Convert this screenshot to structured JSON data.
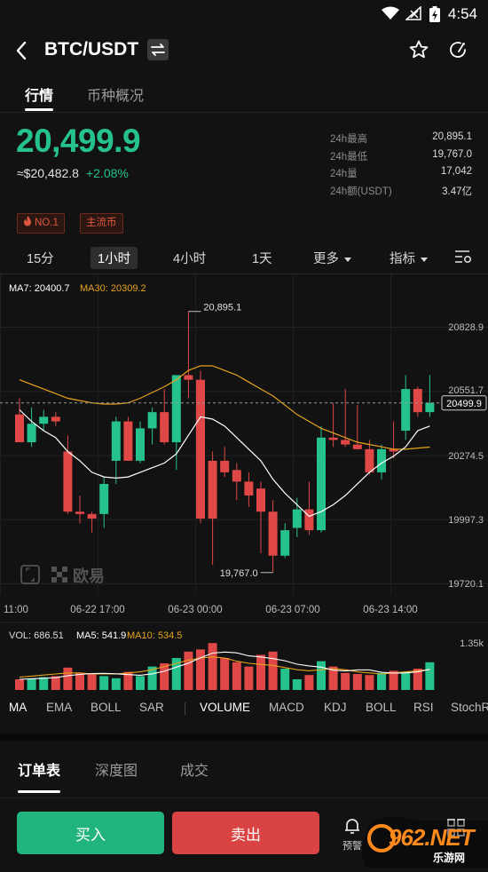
{
  "status_bar": {
    "time": "4:54"
  },
  "header": {
    "pair": "BTC/USDT"
  },
  "tabs": [
    {
      "label": "行情"
    },
    {
      "label": "币种概况"
    }
  ],
  "price": {
    "last": "20,499.9",
    "usd": "≈$20,482.8",
    "change": "+2.08%"
  },
  "stats": [
    {
      "label": "24h最高",
      "value": "20,895.1"
    },
    {
      "label": "24h最低",
      "value": "19,767.0"
    },
    {
      "label": "24h量",
      "value": "17,042"
    },
    {
      "label": "24h额(USDT)",
      "value": "3.47亿"
    }
  ],
  "tags": [
    "NO.1",
    "主流币"
  ],
  "timeframes": [
    {
      "label": "15分"
    },
    {
      "label": "1小时",
      "selected": true
    },
    {
      "label": "4小时"
    },
    {
      "label": "1天"
    },
    {
      "label": "更多"
    },
    {
      "label": "指标"
    }
  ],
  "ma_legend": {
    "ma7": "MA7: 20400.7",
    "ma30": "MA30: 20309.2"
  },
  "price_axis": [
    "20828.9",
    "20551.7",
    "20274.5",
    "19997.3",
    "19720.1"
  ],
  "current_price_label": "20499.9",
  "high_marker": "20,895.1",
  "low_marker": "19,767.0",
  "time_axis": [
    "11:00",
    "06-22 17:00",
    "06-23 00:00",
    "06-23 07:00",
    "06-23 14:00"
  ],
  "chart_logo": "欧易",
  "vol_legend": {
    "vol": "VOL: 686.51",
    "ma5": "MA5: 541.9",
    "ma10": "MA10: 534.5"
  },
  "vol_axis": "1.35k",
  "indicators": [
    "MA",
    "EMA",
    "BOLL",
    "SAR",
    "VOLUME",
    "MACD",
    "KDJ",
    "BOLL",
    "RSI",
    "StochRSI"
  ],
  "book_tabs": [
    {
      "label": "订单表"
    },
    {
      "label": "深度图"
    },
    {
      "label": "成交"
    }
  ],
  "actions": {
    "buy": "买入",
    "sell": "卖出",
    "alert": "预警"
  },
  "watermark": {
    "brand": "962.NET",
    "sub": "乐游网"
  },
  "colors": {
    "up": "#25c28e",
    "down": "#e04848",
    "ma7": "#ffffff",
    "ma30": "#e8a31c",
    "ma10": "#e8a31c"
  },
  "chart_data": {
    "type": "candlestick",
    "ylim": [
      19720.1,
      20828.9
    ],
    "last_price": 20499.9,
    "candles": [
      {
        "o": 20450,
        "h": 20520,
        "l": 20330,
        "c": 20330
      },
      {
        "o": 20330,
        "h": 20480,
        "l": 20310,
        "c": 20410
      },
      {
        "o": 20410,
        "h": 20470,
        "l": 20380,
        "c": 20440
      },
      {
        "o": 20440,
        "h": 20460,
        "l": 20400,
        "c": 20420
      },
      {
        "o": 20290,
        "h": 20360,
        "l": 20020,
        "c": 20030
      },
      {
        "o": 20030,
        "h": 20100,
        "l": 19980,
        "c": 20020
      },
      {
        "o": 20020,
        "h": 20030,
        "l": 19940,
        "c": 20000
      },
      {
        "o": 20020,
        "h": 20180,
        "l": 19960,
        "c": 20150
      },
      {
        "o": 20250,
        "h": 20440,
        "l": 20150,
        "c": 20420
      },
      {
        "o": 20420,
        "h": 20440,
        "l": 20250,
        "c": 20250
      },
      {
        "o": 20250,
        "h": 20420,
        "l": 20240,
        "c": 20390
      },
      {
        "o": 20390,
        "h": 20480,
        "l": 20320,
        "c": 20460
      },
      {
        "o": 20460,
        "h": 20560,
        "l": 20320,
        "c": 20330
      },
      {
        "o": 20330,
        "h": 20620,
        "l": 20210,
        "c": 20620
      },
      {
        "o": 20620,
        "h": 20895.1,
        "l": 20520,
        "c": 20600
      },
      {
        "o": 20600,
        "h": 20640,
        "l": 19980,
        "c": 20000
      },
      {
        "o": 20250,
        "h": 20290,
        "l": 19800,
        "c": 20000
      },
      {
        "o": 20250,
        "h": 20310,
        "l": 20180,
        "c": 20200
      },
      {
        "o": 20210,
        "h": 20240,
        "l": 20080,
        "c": 20160
      },
      {
        "o": 20160,
        "h": 20200,
        "l": 20050,
        "c": 20100
      },
      {
        "o": 20130,
        "h": 20160,
        "l": 19850,
        "c": 20030
      },
      {
        "o": 20030,
        "h": 20080,
        "l": 19767,
        "c": 19840
      },
      {
        "o": 19840,
        "h": 19980,
        "l": 19830,
        "c": 19950
      },
      {
        "o": 19960,
        "h": 20090,
        "l": 19920,
        "c": 20040
      },
      {
        "o": 20040,
        "h": 20160,
        "l": 19930,
        "c": 19950
      },
      {
        "o": 19950,
        "h": 20400,
        "l": 19940,
        "c": 20350
      },
      {
        "o": 20350,
        "h": 20500,
        "l": 20310,
        "c": 20340
      },
      {
        "o": 20340,
        "h": 20560,
        "l": 20310,
        "c": 20320
      },
      {
        "o": 20320,
        "h": 20490,
        "l": 20300,
        "c": 20300
      },
      {
        "o": 20300,
        "h": 20340,
        "l": 20190,
        "c": 20200
      },
      {
        "o": 20200,
        "h": 20320,
        "l": 20170,
        "c": 20300
      },
      {
        "o": 20300,
        "h": 20420,
        "l": 20260,
        "c": 20290
      },
      {
        "o": 20380,
        "h": 20620,
        "l": 20340,
        "c": 20560
      },
      {
        "o": 20560,
        "h": 20570,
        "l": 20440,
        "c": 20460
      },
      {
        "o": 20460,
        "h": 20620,
        "l": 20440,
        "c": 20500
      }
    ],
    "ma7": [
      20470,
      20420,
      20380,
      20350,
      20290,
      20250,
      20200,
      20180,
      20175,
      20180,
      20200,
      20220,
      20240,
      20280,
      20360,
      20440,
      20430,
      20400,
      20350,
      20300,
      20250,
      20170,
      20110,
      20060,
      20010,
      20030,
      20060,
      20100,
      20150,
      20200,
      20240,
      20270,
      20310,
      20380,
      20400
    ],
    "ma30": [
      20600,
      20580,
      20560,
      20540,
      20520,
      20510,
      20500,
      20495,
      20495,
      20500,
      20520,
      20545,
      20570,
      20600,
      20640,
      20660,
      20660,
      20640,
      20620,
      20590,
      20560,
      20530,
      20490,
      20450,
      20420,
      20390,
      20370,
      20350,
      20330,
      20320,
      20310,
      20300,
      20300,
      20305,
      20309.2
    ],
    "volume": [
      0.1,
      0.11,
      0.12,
      0.13,
      0.21,
      0.16,
      0.15,
      0.13,
      0.11,
      0.17,
      0.13,
      0.22,
      0.25,
      0.3,
      0.36,
      0.38,
      0.44,
      0.3,
      0.26,
      0.22,
      0.33,
      0.36,
      0.2,
      0.1,
      0.14,
      0.27,
      0.22,
      0.16,
      0.15,
      0.14,
      0.16,
      0.18,
      0.17,
      0.2,
      0.26
    ],
    "vol_ma": [
      0.12,
      0.13,
      0.14,
      0.15,
      0.16,
      0.16,
      0.15,
      0.15,
      0.15,
      0.16,
      0.17,
      0.19,
      0.22,
      0.25,
      0.28,
      0.3,
      0.31,
      0.3,
      0.27,
      0.25,
      0.24,
      0.23,
      0.21,
      0.19,
      0.18,
      0.19,
      0.2,
      0.19,
      0.17,
      0.16,
      0.15,
      0.16,
      0.17,
      0.18,
      0.19
    ]
  }
}
